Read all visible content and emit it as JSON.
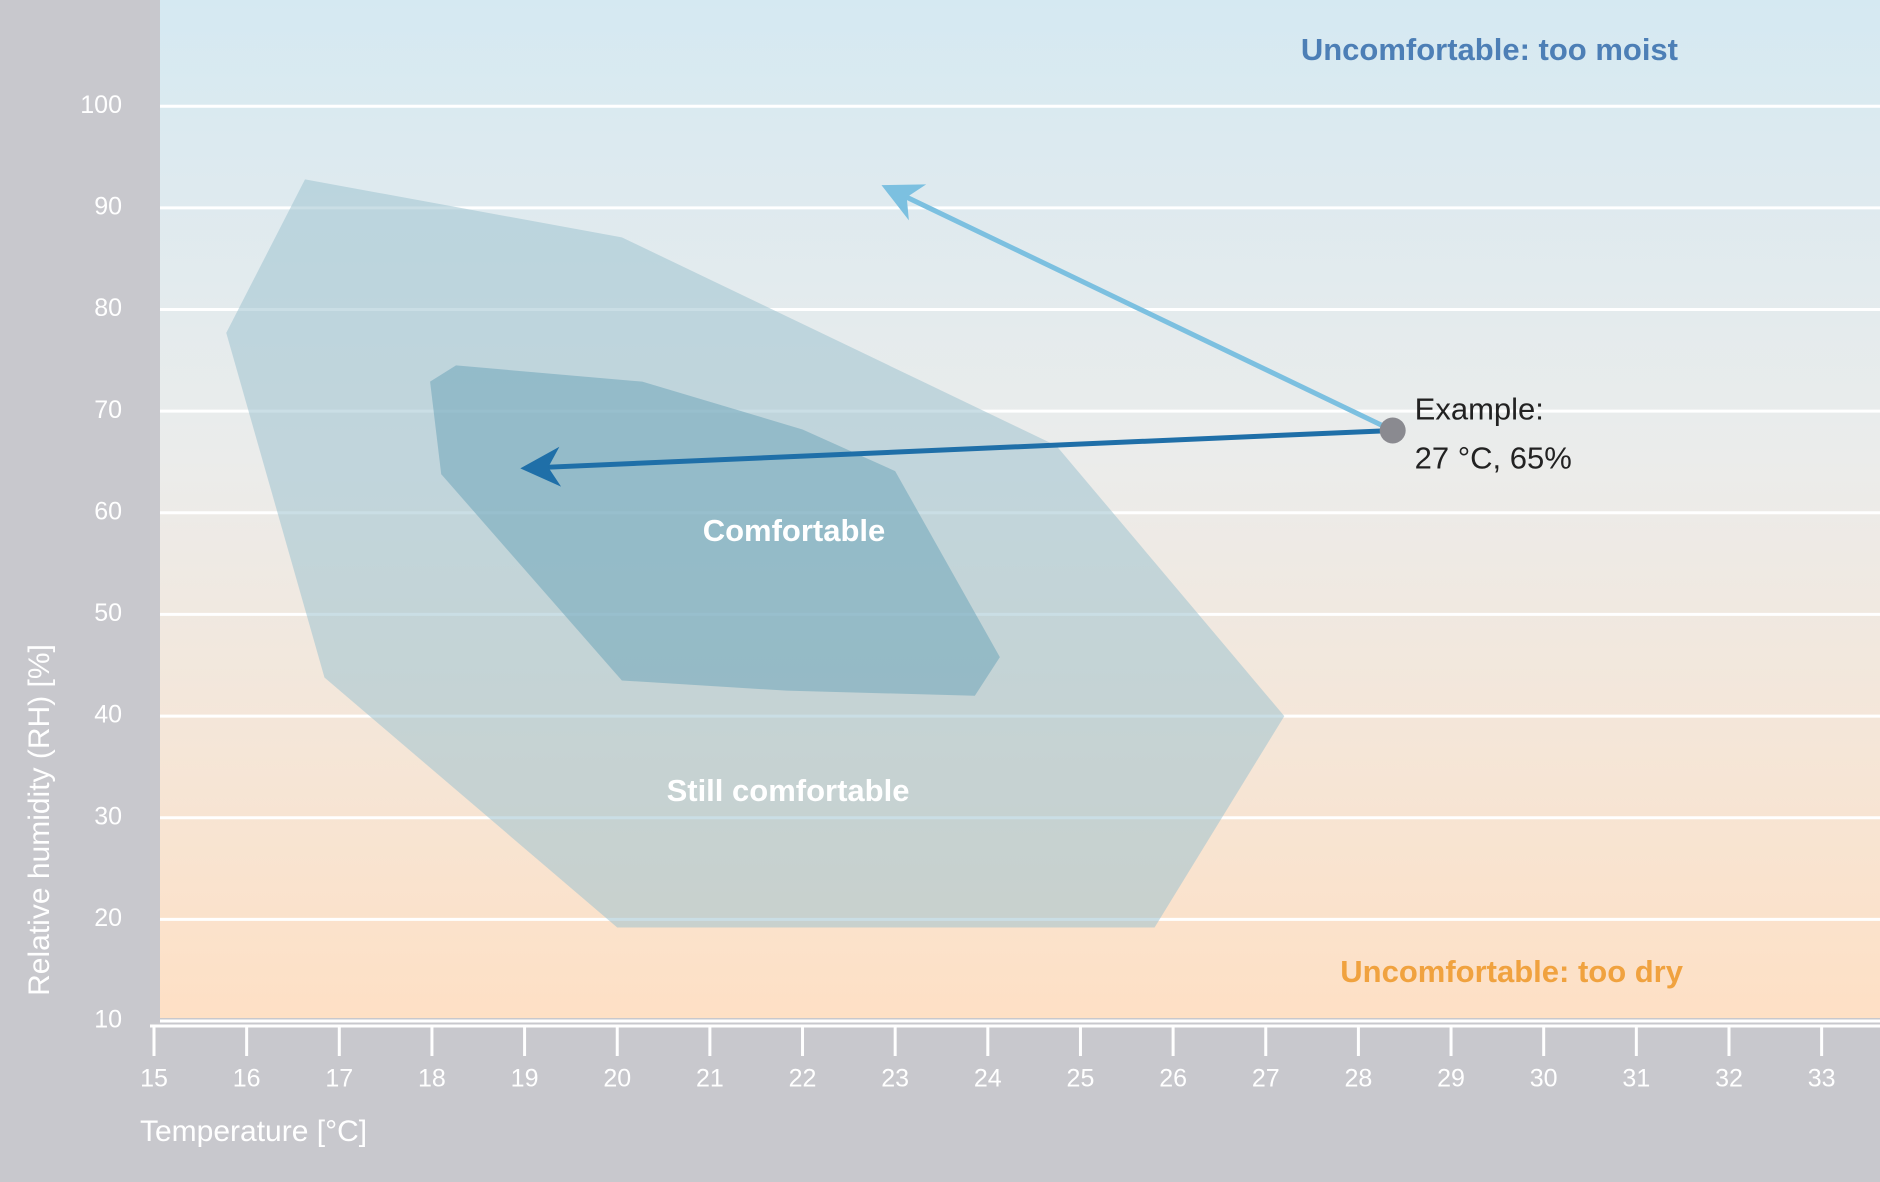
{
  "chart_data": {
    "type": "area",
    "x_label": "Temperature [°C]",
    "y_label": "Relative humidity (RH) [%]",
    "xlim": [
      15,
      33.63
    ],
    "ylim": [
      10,
      110.45
    ],
    "xticks": [
      15,
      16,
      17,
      18,
      19,
      20,
      21,
      22,
      23,
      24,
      25,
      26,
      27,
      28,
      29,
      30,
      31,
      32,
      33
    ],
    "yticks": [
      10,
      20,
      30,
      40,
      50,
      60,
      70,
      80,
      90,
      100
    ],
    "grid": true,
    "series": [
      {
        "name": "Still comfortable",
        "color": "#9fc3cf",
        "x": [
          16.63,
          20.05,
          24.74,
          27.2,
          25.8,
          20.0,
          16.84,
          15.78
        ],
        "y": [
          92.8,
          87.1,
          66.6,
          40.0,
          19.2,
          19.2,
          43.8,
          77.7
        ]
      },
      {
        "name": "Comfortable",
        "color": "#6fa6b9",
        "x": [
          18.26,
          20.27,
          22.0,
          23.0,
          24.13,
          23.86,
          21.83,
          20.05,
          18.1,
          17.98
        ],
        "y": [
          74.5,
          72.9,
          68.2,
          64.1,
          45.8,
          42.0,
          42.5,
          43.5,
          63.8,
          72.9
        ]
      }
    ],
    "annotations": [
      {
        "text": "Uncomfortable: too moist",
        "color": "#4d7fb6"
      },
      {
        "text": "Uncomfortable: too dry",
        "color": "#f0a23f"
      }
    ],
    "example": {
      "label": [
        "Example:",
        "27 °C, 65%"
      ],
      "x": 28.37,
      "y": 68.1,
      "color": "#8a8a90"
    },
    "arrows": [
      {
        "color": "#7cc0e0",
        "x": 22.93,
        "y": 91.9
      },
      {
        "color": "#1f6fa8",
        "x": 19.04,
        "y": 64.4
      }
    ]
  }
}
